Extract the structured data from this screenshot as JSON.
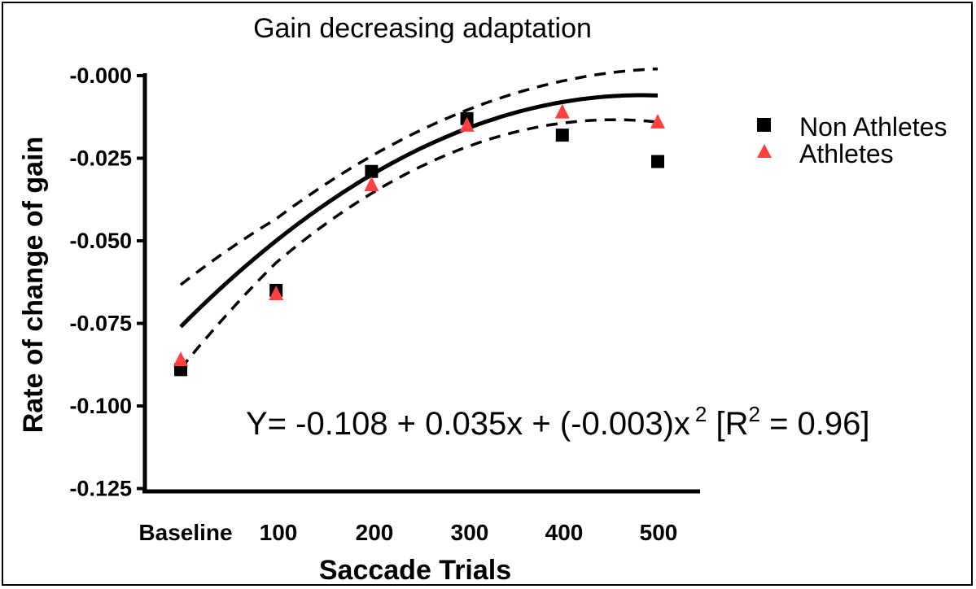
{
  "chart_data": {
    "type": "scatter",
    "title": "Gain decreasing adaptation",
    "xlabel": "Saccade Trials",
    "ylabel": "Rate of change of gain",
    "categories": [
      "Baseline",
      "100",
      "200",
      "300",
      "400",
      "500"
    ],
    "yticks": [
      "-0.000",
      "-0.025",
      "-0.050",
      "-0.075",
      "-0.100",
      "-0.125"
    ],
    "ylim": [
      -0.125,
      0.0
    ],
    "series": [
      {
        "name": "Non Athletes",
        "marker": "square",
        "color": "#000000",
        "values": [
          -0.089,
          -0.065,
          -0.029,
          -0.013,
          -0.018,
          -0.026
        ]
      },
      {
        "name": "Athletes",
        "marker": "triangle",
        "color": "#ff4040",
        "values": [
          -0.086,
          -0.066,
          -0.033,
          -0.015,
          -0.011,
          -0.014
        ]
      }
    ],
    "fit": {
      "type": "quadratic",
      "intercept": -0.108,
      "linear": 0.035,
      "quadratic": -0.003,
      "r2": 0.96
    },
    "equation": {
      "prefix": "Y= -0.108  + 0.035x + (-0.003)x",
      "exp": "2",
      "r_open": " [R",
      "r_exp": "2",
      "r_close": " = 0.96]"
    },
    "legend_position": "top-right",
    "grid": false
  }
}
